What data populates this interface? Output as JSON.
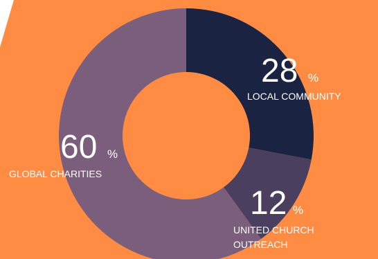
{
  "colors": {
    "background": "#FF8C42",
    "decor_white": "#FFFFFF",
    "slice_local_community": "#1A2442",
    "slice_united_church_outreach": "#4A3F5F",
    "slice_global_charities": "#7B5E7B",
    "text": "#FFFFFF"
  },
  "chart_data": {
    "type": "pie",
    "variant": "donut",
    "slices": [
      {
        "value": 28,
        "unit": "%",
        "label_lines": [
          "LOCAL COMMUNITY"
        ]
      },
      {
        "value": 12,
        "unit": "%",
        "label_lines": [
          "UNITED CHURCH",
          "OUTREACH"
        ]
      },
      {
        "value": 60,
        "unit": "%",
        "label_lines": [
          "GLOBAL CHARITIES"
        ]
      }
    ]
  }
}
